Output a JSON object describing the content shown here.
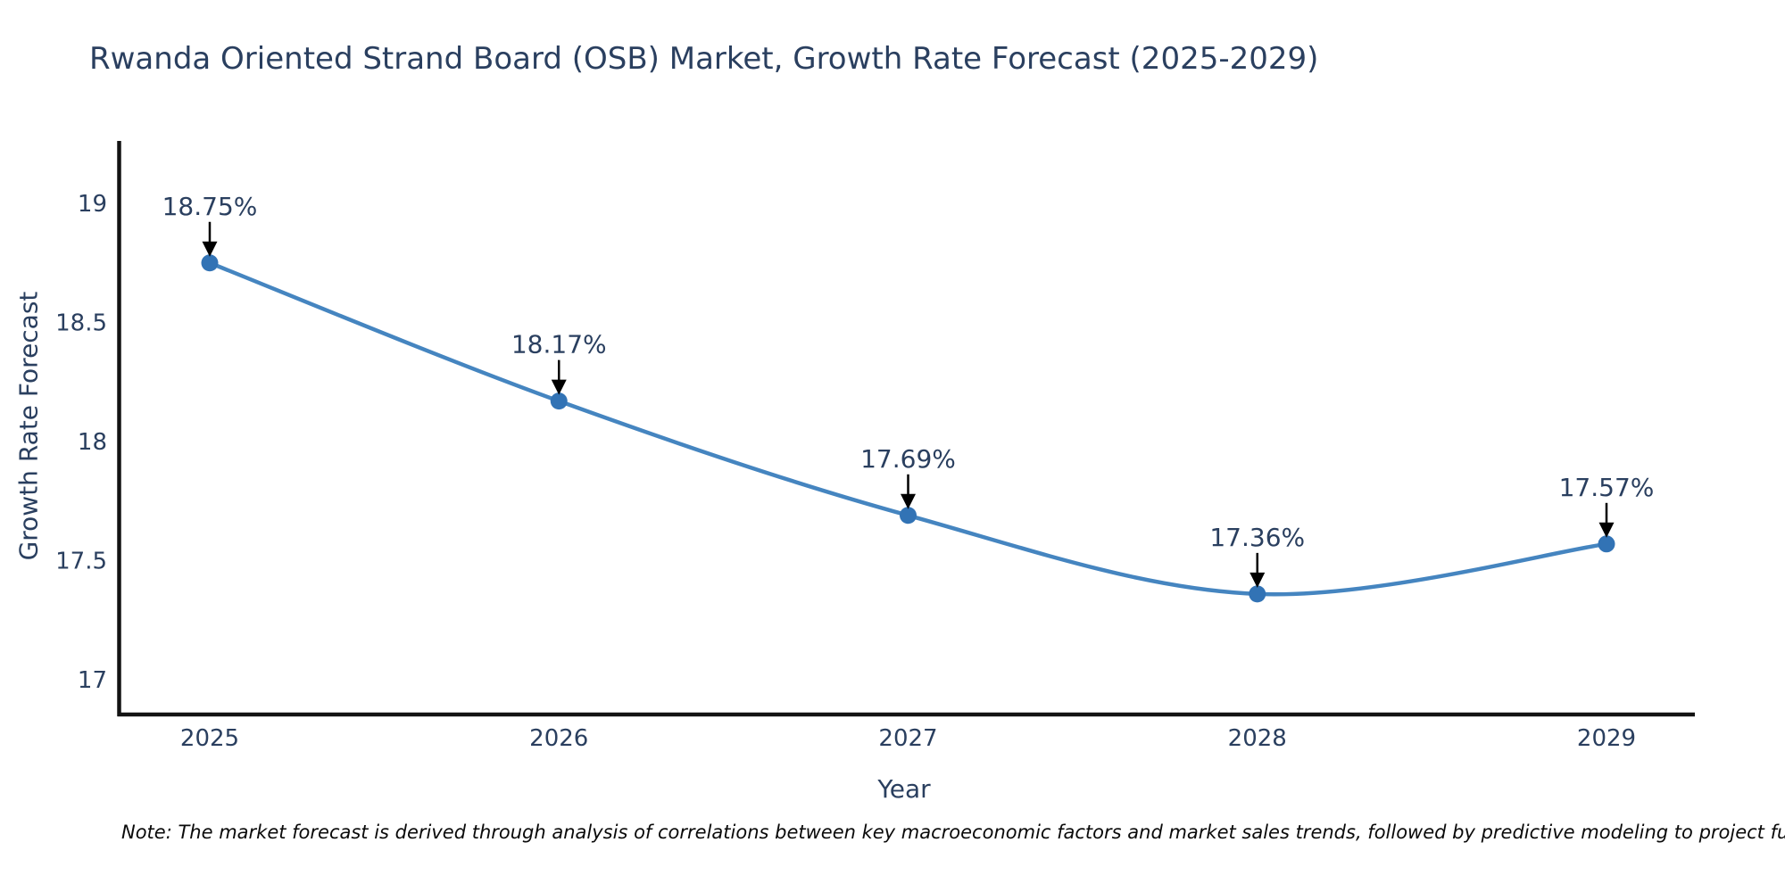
{
  "title": "Rwanda Oriented Strand Board (OSB) Market, Growth Rate Forecast (2025-2029)",
  "note": "Note: The market forecast is derived through analysis of correlations between key macroeconomic factors and market sales trends, followed by predictive modeling to project future sales.",
  "chart_data": {
    "type": "line",
    "title": "Rwanda Oriented Strand Board (OSB) Market, Growth Rate Forecast (2025-2029)",
    "xlabel": "Year",
    "ylabel": "Growth Rate Forecast",
    "x": [
      2025,
      2026,
      2027,
      2028,
      2029
    ],
    "series": [
      {
        "name": "Growth Rate Forecast",
        "values": [
          18.75,
          18.17,
          17.69,
          17.36,
          17.57
        ]
      }
    ],
    "point_labels": [
      "18.75%",
      "18.17%",
      "17.69%",
      "17.36%",
      "17.57%"
    ],
    "xtick_labels": [
      "2025",
      "2026",
      "2027",
      "2028",
      "2029"
    ],
    "yticks": [
      17,
      17.5,
      18,
      18.5,
      19
    ],
    "ytick_labels": [
      "17",
      "17.5",
      "18",
      "18.5",
      "19"
    ],
    "ylim": [
      16.85,
      19.25
    ],
    "xlim": [
      2024.74,
      2029.25
    ],
    "grid": false,
    "legend_position": "none",
    "line_shape": "spline",
    "annotations_have_arrows": true
  },
  "colors": {
    "background": "#ffffff",
    "title_text": "#2a3f5f",
    "tick_text": "#2a3f5f",
    "annotation_text": "#2a3f5f",
    "note_text": "#0a0a0a",
    "axis_line": "#131313",
    "series_line": "#4585c0",
    "marker_fill": "#3273b5",
    "arrow": "#000000"
  }
}
